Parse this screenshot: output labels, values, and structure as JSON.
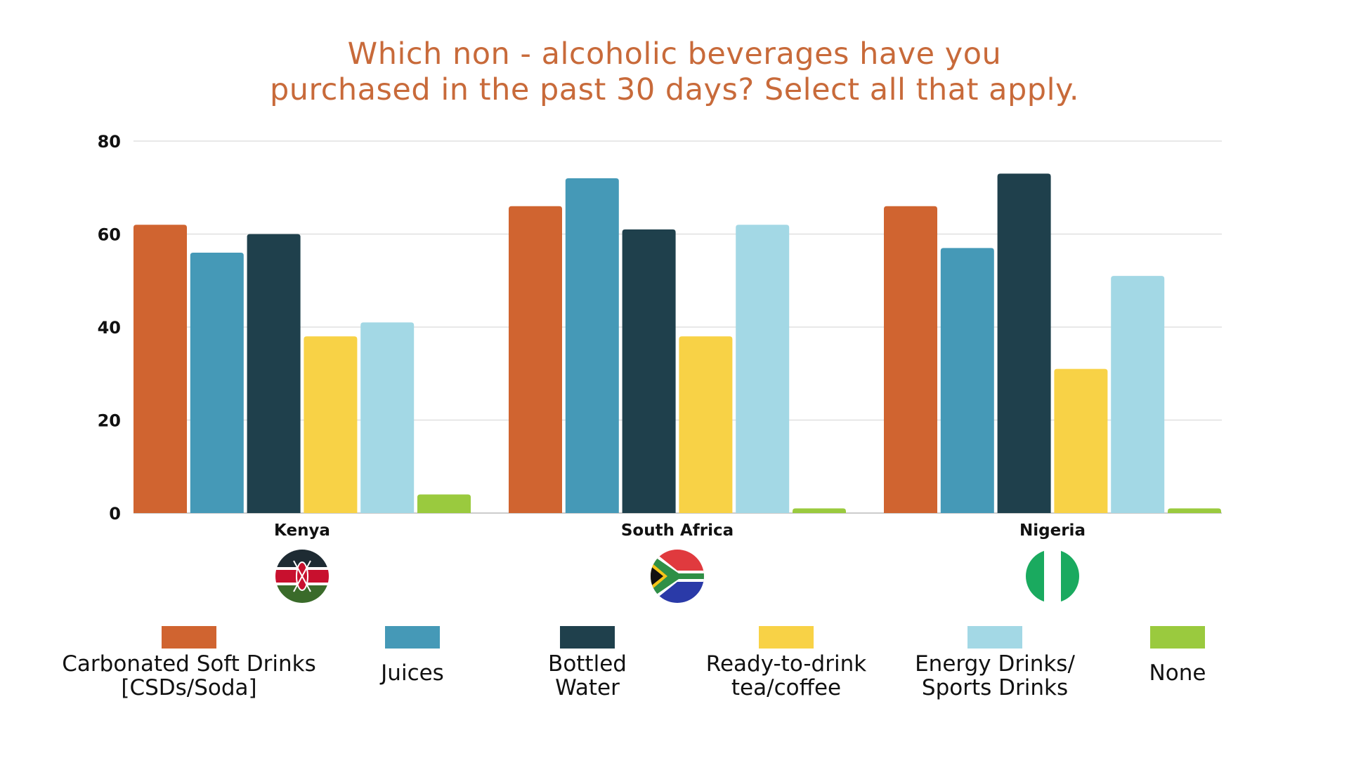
{
  "chart_data": {
    "type": "bar",
    "title": [
      "Which non - alcoholic beverages have you",
      "purchased in the past 30 days? Select all that apply."
    ],
    "xlabel": "",
    "ylabel": "",
    "ylim": [
      0,
      80
    ],
    "yticks": [
      "0",
      "20",
      "40",
      "60",
      "80"
    ],
    "grid": true,
    "legend_position": "bottom",
    "categories": [
      "Kenya",
      "South Africa",
      "Nigeria"
    ],
    "flags": [
      "kenya-flag",
      "south-africa-flag",
      "nigeria-flag"
    ],
    "series": [
      {
        "name": "Carbonated Soft Drinks [CSDs/Soda]",
        "label_lines": [
          "Carbonated Soft Drinks",
          "[CSDs/Soda]"
        ],
        "color": "#d06430",
        "values": [
          62,
          66,
          66
        ]
      },
      {
        "name": "Juices",
        "label_lines": [
          "Juices"
        ],
        "color": "#4599b7",
        "values": [
          56,
          72,
          57
        ]
      },
      {
        "name": "Bottled Water",
        "label_lines": [
          "Bottled",
          "Water"
        ],
        "color": "#1f404c",
        "values": [
          60,
          61,
          73
        ]
      },
      {
        "name": "Ready-to-drink tea/coffee",
        "label_lines": [
          "Ready-to-drink",
          "tea/coffee"
        ],
        "color": "#f8d246",
        "values": [
          38,
          38,
          31
        ]
      },
      {
        "name": "Energy Drinks/ Sports Drinks",
        "label_lines": [
          "Energy Drinks/",
          "Sports Drinks"
        ],
        "color": "#a3d8e5",
        "values": [
          41,
          62,
          51
        ]
      },
      {
        "name": "None",
        "label_lines": [
          "None"
        ],
        "color": "#9aca3e",
        "values": [
          4,
          1,
          1
        ]
      }
    ]
  }
}
